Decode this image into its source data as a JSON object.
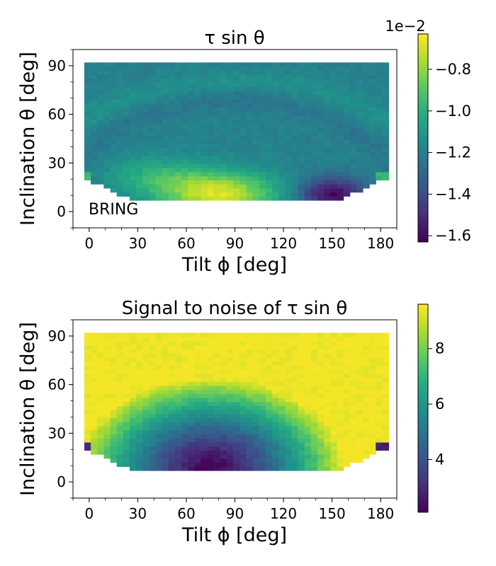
{
  "chart_data": [
    {
      "type": "heatmap",
      "title": "τ sin  θ",
      "xlabel": "Tilt ϕ [deg]",
      "ylabel": "Inclination θ [deg]",
      "xlim": [
        -10,
        190
      ],
      "ylim": [
        -10,
        100
      ],
      "x_ticks": [
        "0",
        "30",
        "60",
        "90",
        "120",
        "150",
        "180"
      ],
      "y_ticks": [
        "0",
        "30",
        "60",
        "90"
      ],
      "grid": false,
      "annotation": "BRING",
      "colormap": "viridis",
      "colorbar": {
        "range": [
          -1.63,
          -0.63
        ],
        "ticks": [
          "−0.8",
          "−1.0",
          "−1.2",
          "−1.4",
          "−1.6"
        ],
        "tick_values": [
          -0.8,
          -1.0,
          -1.2,
          -1.4,
          -1.6
        ],
        "offset_label": "1e−2"
      },
      "surface": {
        "phi_range": [
          -3,
          183
        ],
        "theta_top": 92,
        "min_value": -1.62,
        "min_at": {
          "phi": 150,
          "theta": 11
        },
        "max_value": -0.64,
        "max_at": {
          "phi": 75,
          "theta": 11
        },
        "background_value": -1.18
      }
    },
    {
      "type": "heatmap",
      "title": "Signal to noise of τ sin  θ",
      "xlabel": "Tilt ϕ [deg]",
      "ylabel": "Inclination θ [deg]",
      "xlim": [
        -10,
        190
      ],
      "ylim": [
        -10,
        100
      ],
      "x_ticks": [
        "0",
        "30",
        "60",
        "90",
        "120",
        "150",
        "180"
      ],
      "y_ticks": [
        "0",
        "30",
        "60",
        "90"
      ],
      "grid": false,
      "colormap": "viridis",
      "colorbar": {
        "range": [
          2.1,
          9.6
        ],
        "ticks": [
          "8",
          "6",
          "4"
        ],
        "tick_values": [
          8,
          6,
          4
        ]
      },
      "surface": {
        "phi_range": [
          -3,
          183
        ],
        "theta_top": 92,
        "min_value": 2.2,
        "min_at": {
          "phi": 75,
          "theta": 11
        },
        "max_value": 9.5,
        "plateau_above_theta": 65
      }
    }
  ]
}
